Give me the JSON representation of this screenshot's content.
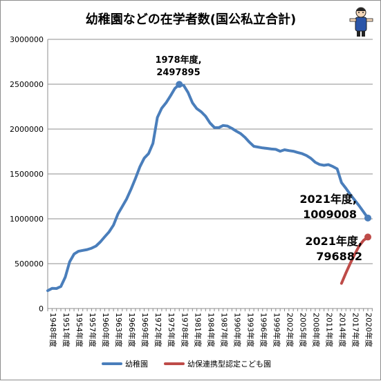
{
  "chart_data": {
    "type": "line",
    "title": "幼稚園などの在学者数(国公私立合計)",
    "ylim": [
      0,
      3000000
    ],
    "y_ticks": [
      "0",
      "500000",
      "1000000",
      "1500000",
      "2000000",
      "2500000",
      "3000000"
    ],
    "x_tick_labels": [
      "1948年度",
      "1951年度",
      "1954年度",
      "1957年度",
      "1960年度",
      "1963年度",
      "1966年度",
      "1969年度",
      "1972年度",
      "1975年度",
      "1978年度",
      "1981年度",
      "1984年度",
      "1987年度",
      "1990年度",
      "1993年度",
      "1996年度",
      "1999年度",
      "2002年度",
      "2005年度",
      "2008年度",
      "2011年度",
      "2014年度",
      "2017年度",
      "2020年度"
    ],
    "x_tick_years": [
      1948,
      1951,
      1954,
      1957,
      1960,
      1963,
      1966,
      1969,
      1972,
      1975,
      1978,
      1981,
      1984,
      1987,
      1990,
      1993,
      1996,
      1999,
      2002,
      2005,
      2008,
      2011,
      2014,
      2017,
      2020
    ],
    "xlim": [
      1948,
      2021
    ],
    "grid": true,
    "legend_position": "bottom",
    "series": [
      {
        "name": "幼稚園",
        "color": "#4a7ebb",
        "x": [
          1948,
          1949,
          1950,
          1951,
          1952,
          1953,
          1954,
          1955,
          1956,
          1957,
          1958,
          1959,
          1960,
          1961,
          1962,
          1963,
          1964,
          1965,
          1966,
          1967,
          1968,
          1969,
          1970,
          1971,
          1972,
          1973,
          1974,
          1975,
          1976,
          1977,
          1978,
          1979,
          1980,
          1981,
          1982,
          1983,
          1984,
          1985,
          1986,
          1987,
          1988,
          1989,
          1990,
          1991,
          1992,
          1993,
          1994,
          1995,
          1996,
          1997,
          1998,
          1999,
          2000,
          2001,
          2002,
          2003,
          2004,
          2005,
          2006,
          2007,
          2008,
          2009,
          2010,
          2011,
          2012,
          2013,
          2014,
          2015,
          2016,
          2017,
          2018,
          2019,
          2020,
          2021
        ],
        "values": [
          199000,
          225000,
          223000,
          245000,
          350000,
          520000,
          607000,
          638000,
          648000,
          657000,
          672000,
          696000,
          742000,
          800000,
          855000,
          929000,
          1053000,
          1137000,
          1222000,
          1330000,
          1448000,
          1578000,
          1675000,
          1727000,
          1841000,
          2129000,
          2233000,
          2293000,
          2371000,
          2453000,
          2497895,
          2487000,
          2407000,
          2293000,
          2228000,
          2192000,
          2143000,
          2068000,
          2018000,
          2016000,
          2040000,
          2034000,
          2008000,
          1977000,
          1949000,
          1907000,
          1853000,
          1808000,
          1799000,
          1790000,
          1785000,
          1778000,
          1774000,
          1753000,
          1769000,
          1760000,
          1753000,
          1739000,
          1726000,
          1705000,
          1675000,
          1630000,
          1605000,
          1596000,
          1604000,
          1583000,
          1557000,
          1403000,
          1339000,
          1271000,
          1208000,
          1146000,
          1078000,
          1009008
        ]
      },
      {
        "name": "幼保連携型認定こども園",
        "color": "#be4b48",
        "x": [
          2015,
          2016,
          2017,
          2018,
          2019,
          2020,
          2021
        ],
        "values": [
          281000,
          397000,
          505000,
          604000,
          696000,
          759000,
          796882
        ]
      }
    ],
    "annotations": [
      {
        "line1": "1978年度,",
        "line2": "2497895",
        "x": 1978,
        "y": 2497895
      },
      {
        "line1": "2021年度,",
        "line2": "1009008",
        "x": 2021,
        "y": 1009008
      },
      {
        "line1": "2021年度,",
        "line2": "796882",
        "x": 2021,
        "y": 796882
      }
    ]
  }
}
